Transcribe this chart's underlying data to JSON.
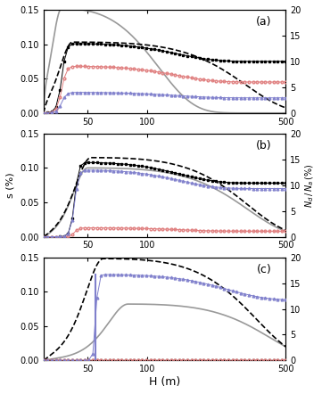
{
  "panels": [
    "(a)",
    "(b)",
    "(c)"
  ],
  "xlim": [
    30,
    500
  ],
  "ylim_left": [
    0,
    0.15
  ],
  "ylim_right": [
    0,
    20
  ],
  "xlabel": "H (m)",
  "ylabel_left": "s (%)",
  "background_color": "#ffffff",
  "grey_color": "#999999",
  "black_color": "#000000",
  "red_color": "#e08080",
  "blue_color": "#8080cc",
  "panel_a": {
    "grey_peak_x": 37,
    "grey_peak_y": 0.152,
    "grey_sigma_r": 60,
    "grey_settle": 0.0,
    "dash_peak_x": 42,
    "dash_peak_y": 0.103,
    "dash_sigma_l": 6,
    "dash_sigma_r": 200,
    "dash_settle": 0.0,
    "black_step_x": 37,
    "black_peak": 0.101,
    "black_settle": 0.075,
    "red_step_x": 37,
    "red_peak": 0.068,
    "red_settle": 0.045,
    "blue_step_x": 37,
    "blue_peak": 0.03,
    "blue_settle": 0.022
  },
  "panel_b": {
    "grey_peak_x": 50,
    "grey_peak_y": 0.1,
    "grey_sigma_l": 8,
    "grey_sigma_r": 200,
    "grey_settle": 0.0,
    "dash_peak_x": 52,
    "dash_peak_y": 0.115,
    "dash_sigma_l": 9,
    "dash_sigma_r": 200,
    "dash_settle": 0.0,
    "black_step_x": 43,
    "black_peak": 0.108,
    "black_settle": 0.078,
    "red_step_x": 43,
    "red_peak": 0.013,
    "red_settle": 0.008,
    "blue_step_x": 43,
    "blue_peak": 0.097,
    "blue_settle": 0.07
  },
  "panel_c": {
    "grey_peak_x": 80,
    "grey_peak_y": 0.082,
    "grey_sigma_l": 18,
    "grey_sigma_r": 250,
    "grey_settle": 0.0,
    "dash_peak_x": 60,
    "dash_peak_y": 0.148,
    "dash_sigma_l": 12,
    "dash_sigma_r": 220,
    "dash_settle": 0.0,
    "black_step_x": 57,
    "black_peak": 0.001,
    "black_settle": 0.001,
    "red_step_x": 57,
    "red_peak": 0.001,
    "red_settle": 0.001,
    "blue_step_x": 55,
    "blue_peak": 0.125,
    "blue_settle": 0.088
  }
}
